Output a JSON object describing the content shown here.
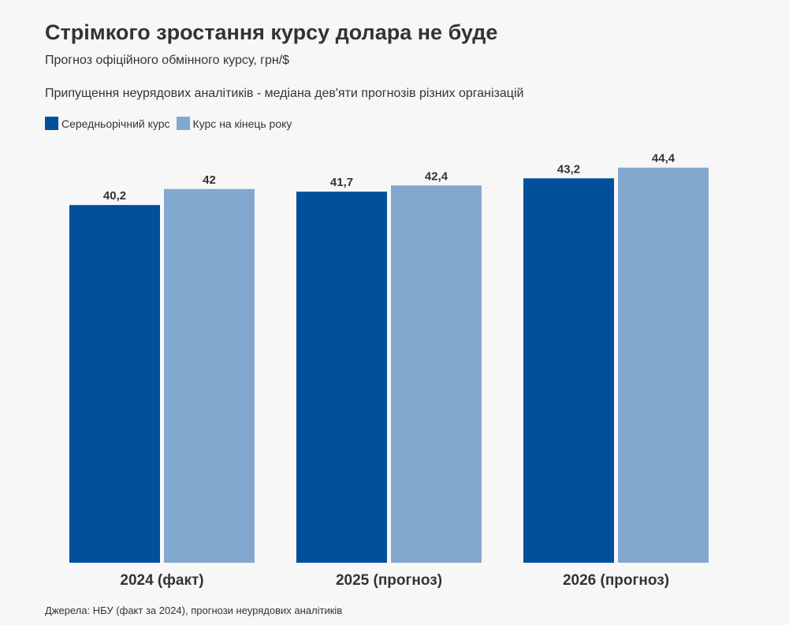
{
  "chart_data": {
    "type": "bar",
    "title": "Стрімкого зростання курсу долара не буде",
    "subtitle": "Прогноз офіційного обмінного курсу, грн/$",
    "note": "Припущення неурядових аналітиків - медіана дев'яти прогнозів різних організацій",
    "categories": [
      "2024 (факт)",
      "2025 (прогноз)",
      "2026 (прогноз)"
    ],
    "series": [
      {
        "name": "Середньорічний курс",
        "values": [
          40.2,
          41.7,
          43.2
        ],
        "labels": [
          "40,2",
          "41,7",
          "43,2"
        ],
        "color": "#00509b"
      },
      {
        "name": "Курс на кінець року",
        "values": [
          42,
          42.4,
          44.4
        ],
        "labels": [
          "42",
          "42,4",
          "44,4"
        ],
        "color": "#82a8cf"
      }
    ],
    "ylim": [
      0,
      46
    ],
    "grid": false,
    "legend_position": "top-left",
    "source": "Джерела: НБУ (факт за 2024), прогнози неурядових аналітиків"
  }
}
